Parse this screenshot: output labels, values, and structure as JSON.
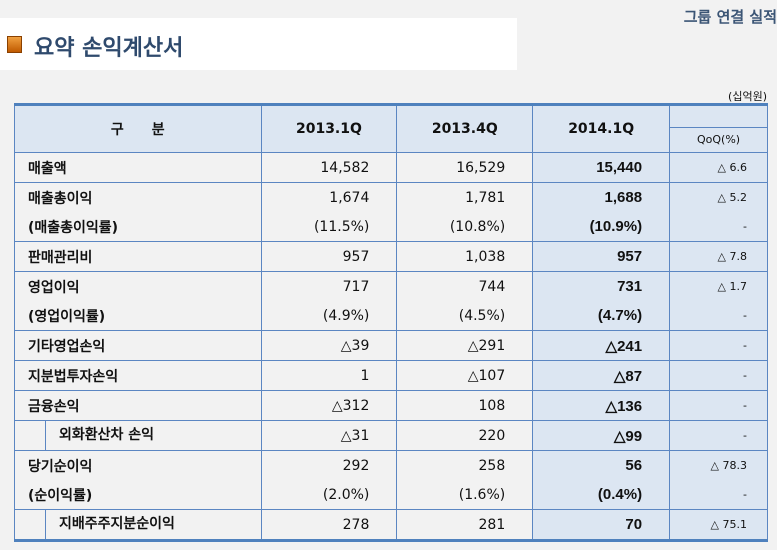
{
  "header": {
    "top_right": "그룹 연결 실적",
    "title": "요약 손익계산서",
    "unit": "(십억원)"
  },
  "table": {
    "columns": [
      "구　　분",
      "2013.1Q",
      "2013.4Q",
      "2014.1Q",
      "QoQ(%)"
    ],
    "rows": [
      {
        "label": "매출액",
        "q1": "14,582",
        "q4": "16,529",
        "cur": "15,440",
        "qoq": "△ 6.6",
        "grp": true,
        "ind": false
      },
      {
        "label": "매출총이익",
        "q1": "1,674",
        "q4": "1,781",
        "cur": "1,688",
        "qoq": "△ 5.2",
        "grp": true,
        "ind": false
      },
      {
        "label": "(매출총이익률)",
        "q1": "(11.5%)",
        "q4": "(10.8%)",
        "cur": "(10.9%)",
        "qoq": "-",
        "grp": false,
        "ind": false
      },
      {
        "label": "판매관리비",
        "q1": "957",
        "q4": "1,038",
        "cur": "957",
        "qoq": "△ 7.8",
        "grp": true,
        "ind": false
      },
      {
        "label": "영업이익",
        "q1": "717",
        "q4": "744",
        "cur": "731",
        "qoq": "△ 1.7",
        "grp": true,
        "ind": false
      },
      {
        "label": "(영업이익률)",
        "q1": "(4.9%)",
        "q4": "(4.5%)",
        "cur": "(4.7%)",
        "qoq": "-",
        "grp": false,
        "ind": false
      },
      {
        "label": "기타영업손익",
        "q1": "△39",
        "q4": "△291",
        "cur": "△241",
        "qoq": "-",
        "grp": true,
        "ind": false
      },
      {
        "label": "지분법투자손익",
        "q1": "1",
        "q4": "△107",
        "cur": "△87",
        "qoq": "-",
        "grp": true,
        "ind": false
      },
      {
        "label": "금융손익",
        "q1": "△312",
        "q4": "108",
        "cur": "△136",
        "qoq": "-",
        "grp": true,
        "ind": false
      },
      {
        "label": "외화환산차 손익",
        "q1": "△31",
        "q4": "220",
        "cur": "△99",
        "qoq": "-",
        "grp": true,
        "ind": true
      },
      {
        "label": "당기순이익",
        "q1": "292",
        "q4": "258",
        "cur": "56",
        "qoq": "△ 78.3",
        "grp": true,
        "ind": false
      },
      {
        "label": "(순이익률)",
        "q1": "(2.0%)",
        "q4": "(1.6%)",
        "cur": "(0.4%)",
        "qoq": "-",
        "grp": false,
        "ind": false
      },
      {
        "label": "지배주주지분순이익",
        "q1": "278",
        "q4": "281",
        "cur": "70",
        "qoq": "△ 75.1",
        "grp": true,
        "ind": true
      }
    ]
  }
}
